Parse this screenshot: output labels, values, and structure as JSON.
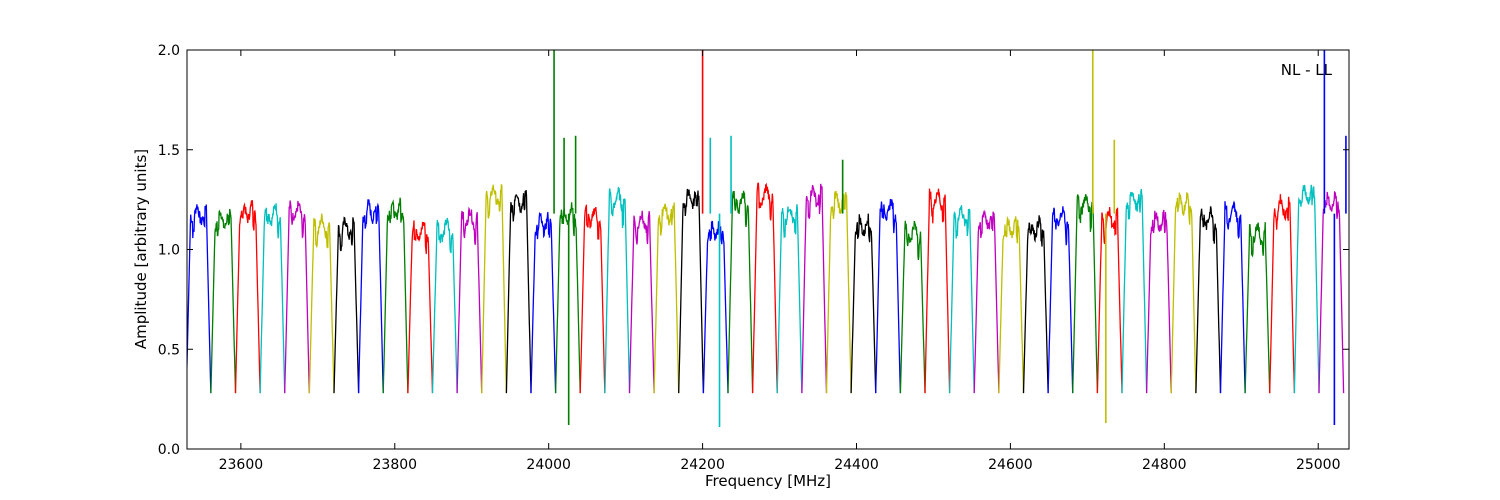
{
  "chart_data": {
    "type": "line",
    "title": "",
    "annotation": "NL - LL",
    "xlabel": "Frequency [MHz]",
    "ylabel": "Amplitude [arbitrary units]",
    "xlim": [
      23530,
      25040
    ],
    "ylim": [
      0.0,
      2.0
    ],
    "xticks": [
      23600,
      23800,
      24000,
      24200,
      24400,
      24600,
      24800,
      25000
    ],
    "yticks": [
      0.0,
      0.5,
      1.0,
      1.5,
      2.0
    ],
    "xtick_labels": [
      "23600",
      "23800",
      "24000",
      "24200",
      "24400",
      "24600",
      "24800",
      "25000"
    ],
    "ytick_labels": [
      "0.0",
      "0.5",
      "1.0",
      "1.5",
      "2.0"
    ],
    "grid": false,
    "legend": "none",
    "colors": [
      "#0000ff",
      "#007f00",
      "#ff0000",
      "#00bfbf",
      "#bf00bf",
      "#bfbf00",
      "#000000"
    ],
    "channel_width_mhz": 32,
    "channel_level": 1.18,
    "channel_edge_dip": 0.28,
    "channel_centers": [
      23545,
      23577,
      23609,
      23641,
      23673,
      23705,
      23737,
      23769,
      23801,
      23833,
      23865,
      23897,
      23929,
      23961,
      23993,
      24025,
      24057,
      24089,
      24121,
      24153,
      24185,
      24217,
      24249,
      24281,
      24313,
      24345,
      24377,
      24409,
      24441,
      24473,
      24505,
      24537,
      24569,
      24601,
      24633,
      24665,
      24697,
      24729,
      24761,
      24793,
      24825,
      24857,
      24889,
      24921,
      24953,
      24985,
      25017
    ],
    "spikes": [
      {
        "x": 24007,
        "y": 2.0,
        "color": "#007f00"
      },
      {
        "x": 24020,
        "y": 1.56,
        "color": "#007f00"
      },
      {
        "x": 24026,
        "y": 0.12,
        "color": "#007f00"
      },
      {
        "x": 24035,
        "y": 1.57,
        "color": "#007f00"
      },
      {
        "x": 24200,
        "y": 2.0,
        "color": "#ff0000"
      },
      {
        "x": 24210,
        "y": 1.56,
        "color": "#00bfbf"
      },
      {
        "x": 24222,
        "y": 0.11,
        "color": "#00bfbf"
      },
      {
        "x": 24237,
        "y": 1.57,
        "color": "#00bfbf"
      },
      {
        "x": 24382,
        "y": 1.45,
        "color": "#007f00"
      },
      {
        "x": 24707,
        "y": 2.0,
        "color": "#bfbf00"
      },
      {
        "x": 24724,
        "y": 0.13,
        "color": "#bfbf00"
      },
      {
        "x": 24735,
        "y": 1.55,
        "color": "#bfbf00"
      },
      {
        "x": 25008,
        "y": 2.0,
        "color": "#0000ff"
      },
      {
        "x": 25021,
        "y": 0.12,
        "color": "#0000ff"
      },
      {
        "x": 25036,
        "y": 1.57,
        "color": "#0000ff"
      }
    ]
  }
}
